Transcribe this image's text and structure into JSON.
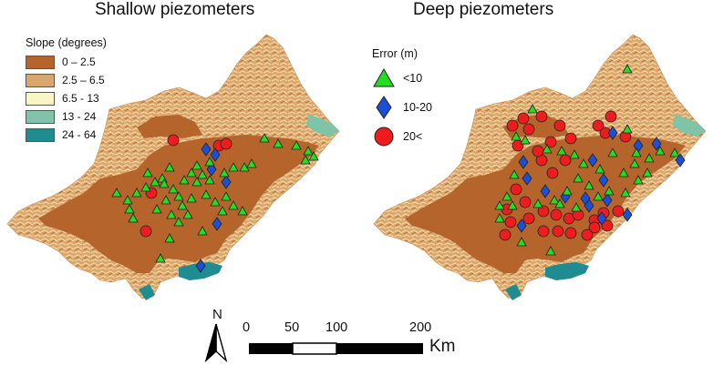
{
  "panels": {
    "left_title": "Shallow piezometers",
    "right_title": "Deep piezometers"
  },
  "slope_legend": {
    "title": "Slope (degrees)",
    "classes": [
      {
        "label": "0 – 2.5",
        "color": "#b5652b"
      },
      {
        "label": "2.5 – 6.5",
        "color": "#dba56e"
      },
      {
        "label": "6.5 - 13",
        "color": "#fbf4c4"
      },
      {
        "label": "13 - 24",
        "color": "#7fc3a8"
      },
      {
        "label": "24 - 64",
        "color": "#1e8c91"
      }
    ]
  },
  "error_legend": {
    "title": "Error (m)",
    "classes": [
      {
        "label": "<10",
        "symbol": "triangle",
        "color": "#22dd22"
      },
      {
        "label": "10-20",
        "symbol": "diamond",
        "color": "#1a4fd6"
      },
      {
        "label": "20<",
        "symbol": "circle",
        "color": "#ee1c1c"
      }
    ]
  },
  "north_arrow": {
    "label": "N"
  },
  "scale_bar": {
    "ticks": [
      "0",
      "50",
      "100",
      "200"
    ],
    "unit": "Km"
  }
}
